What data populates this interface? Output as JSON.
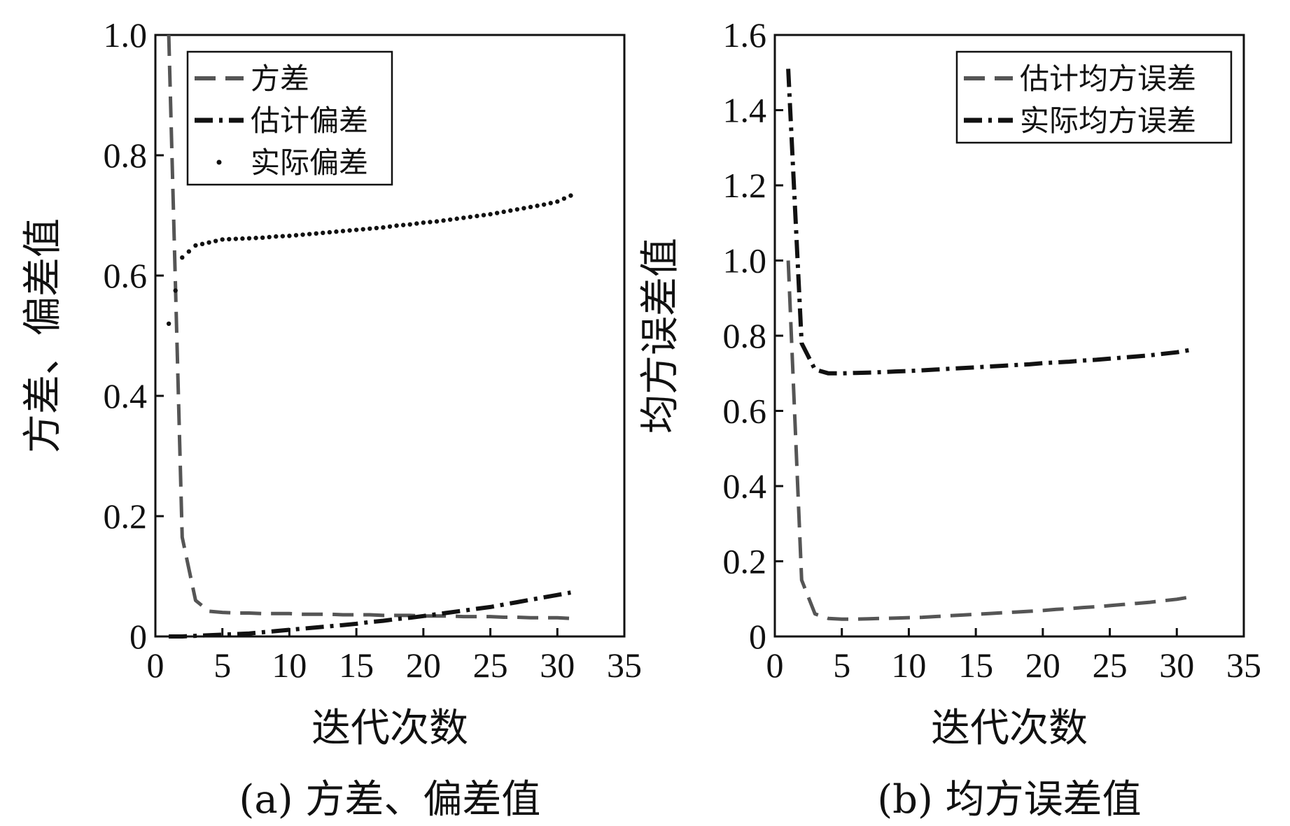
{
  "chart_data": [
    {
      "id": "a",
      "type": "line",
      "title": "",
      "caption": "(a) 方差、偏差值",
      "xlabel": "迭代次数",
      "ylabel": "方差、偏差值",
      "xlim": [
        0,
        35
      ],
      "ylim": [
        0,
        1.0
      ],
      "xticks": [
        0,
        5,
        10,
        15,
        20,
        25,
        30,
        35
      ],
      "xtick_labels": [
        "0",
        "5",
        "10",
        "15",
        "20",
        "25",
        "30",
        "35"
      ],
      "yticks": [
        0,
        0.2,
        0.4,
        0.6,
        0.8,
        1.0
      ],
      "ytick_labels": [
        "0",
        "0.2",
        "0.4",
        "0.6",
        "0.8",
        "1.0"
      ],
      "legend_position": "top-left",
      "x": [
        1,
        2,
        3,
        4,
        5,
        6,
        7,
        8,
        9,
        10,
        11,
        12,
        13,
        14,
        15,
        16,
        17,
        18,
        19,
        20,
        21,
        22,
        23,
        24,
        25,
        26,
        27,
        28,
        29,
        30,
        31
      ],
      "series": [
        {
          "name": "方差",
          "style": "dashed",
          "color": "#555555",
          "values": [
            1.0,
            0.165,
            0.06,
            0.042,
            0.04,
            0.039,
            0.039,
            0.038,
            0.038,
            0.038,
            0.037,
            0.037,
            0.037,
            0.036,
            0.036,
            0.036,
            0.035,
            0.035,
            0.035,
            0.034,
            0.034,
            0.034,
            0.033,
            0.033,
            0.033,
            0.032,
            0.032,
            0.031,
            0.031,
            0.031,
            0.03
          ]
        },
        {
          "name": "估计偏差",
          "style": "dashdot",
          "color": "#111111",
          "values": [
            0.0,
            0.0,
            0.001,
            0.002,
            0.003,
            0.004,
            0.005,
            0.007,
            0.009,
            0.011,
            0.013,
            0.015,
            0.017,
            0.019,
            0.021,
            0.024,
            0.026,
            0.029,
            0.031,
            0.034,
            0.037,
            0.04,
            0.043,
            0.046,
            0.049,
            0.053,
            0.057,
            0.061,
            0.065,
            0.069,
            0.073
          ]
        },
        {
          "name": "实际偏差",
          "style": "dotted",
          "color": "#111111",
          "values": [
            0.52,
            0.63,
            0.65,
            0.655,
            0.66,
            0.661,
            0.662,
            0.663,
            0.665,
            0.666,
            0.668,
            0.67,
            0.672,
            0.674,
            0.676,
            0.678,
            0.68,
            0.683,
            0.685,
            0.688,
            0.69,
            0.693,
            0.696,
            0.699,
            0.702,
            0.706,
            0.71,
            0.714,
            0.718,
            0.723,
            0.733
          ]
        }
      ]
    },
    {
      "id": "b",
      "type": "line",
      "title": "",
      "caption": "(b) 均方误差值",
      "xlabel": "迭代次数",
      "ylabel": "均方误差值",
      "xlim": [
        0,
        35
      ],
      "ylim": [
        0,
        1.6
      ],
      "xticks": [
        0,
        5,
        10,
        15,
        20,
        25,
        30,
        35
      ],
      "xtick_labels": [
        "0",
        "5",
        "10",
        "15",
        "20",
        "25",
        "30",
        "35"
      ],
      "yticks": [
        0,
        0.2,
        0.4,
        0.6,
        0.8,
        1.0,
        1.2,
        1.4,
        1.6
      ],
      "ytick_labels": [
        "0",
        "0.2",
        "0.4",
        "0.6",
        "0.8",
        "1.0",
        "1.2",
        "1.4",
        "1.6"
      ],
      "legend_position": "top-right",
      "x": [
        1,
        2,
        3,
        4,
        5,
        6,
        7,
        8,
        9,
        10,
        11,
        12,
        13,
        14,
        15,
        16,
        17,
        18,
        19,
        20,
        21,
        22,
        23,
        24,
        25,
        26,
        27,
        28,
        29,
        30,
        31
      ],
      "series": [
        {
          "name": "估计均方误差",
          "style": "dashed",
          "color": "#555555",
          "values": [
            1.0,
            0.15,
            0.06,
            0.048,
            0.046,
            0.046,
            0.047,
            0.048,
            0.049,
            0.05,
            0.051,
            0.053,
            0.055,
            0.057,
            0.059,
            0.061,
            0.063,
            0.065,
            0.067,
            0.069,
            0.072,
            0.074,
            0.077,
            0.079,
            0.082,
            0.085,
            0.088,
            0.091,
            0.095,
            0.099,
            0.105
          ]
        },
        {
          "name": "实际均方误差",
          "style": "dashdot",
          "color": "#111111",
          "values": [
            1.51,
            0.78,
            0.71,
            0.7,
            0.7,
            0.701,
            0.702,
            0.703,
            0.705,
            0.706,
            0.708,
            0.71,
            0.712,
            0.714,
            0.716,
            0.718,
            0.72,
            0.722,
            0.724,
            0.727,
            0.729,
            0.731,
            0.734,
            0.736,
            0.739,
            0.742,
            0.745,
            0.748,
            0.752,
            0.756,
            0.762
          ]
        }
      ]
    }
  ]
}
